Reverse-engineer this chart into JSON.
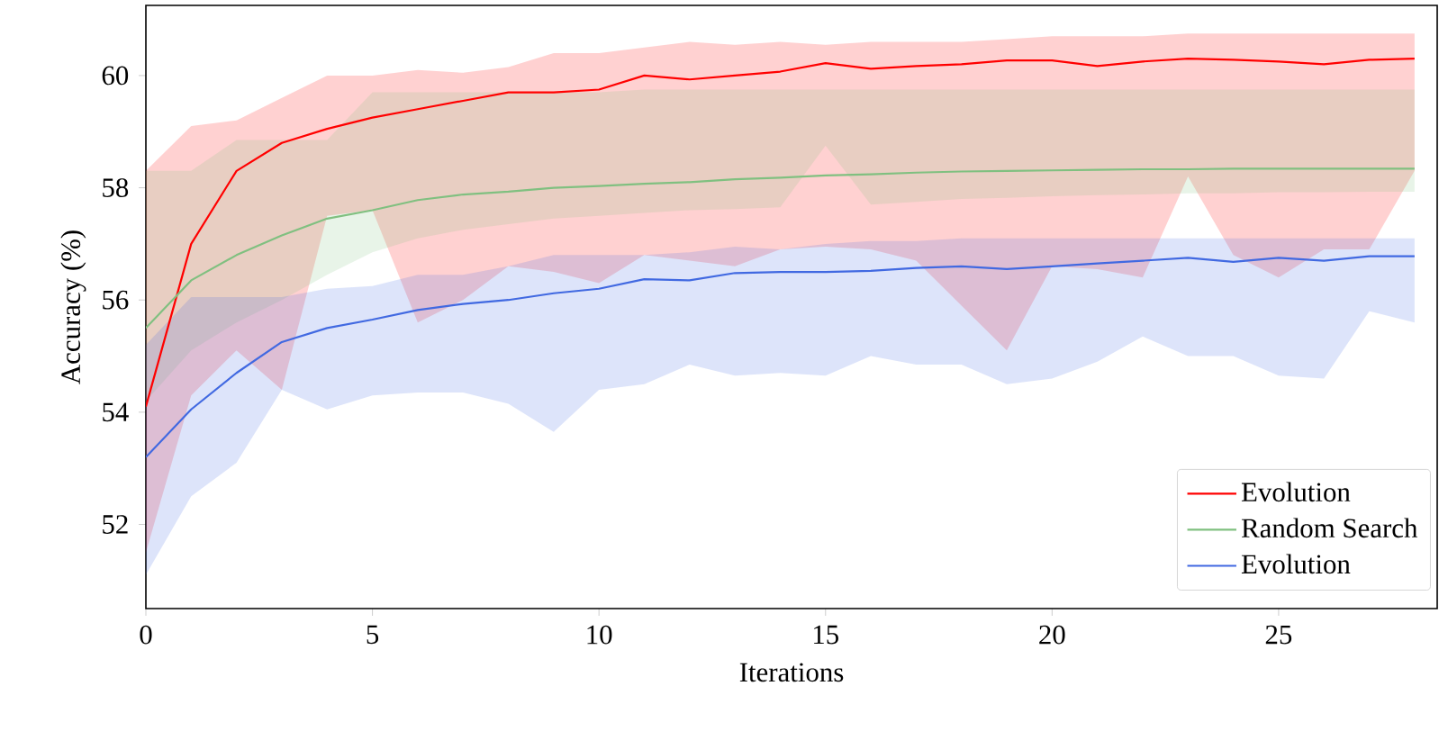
{
  "chart_data": {
    "type": "line",
    "xlabel": "Iterations",
    "ylabel": "Accuracy (%)",
    "xlim": [
      0,
      28.5
    ],
    "ylim": [
      50.5,
      61.25
    ],
    "xticks": [
      0,
      5,
      10,
      15,
      20,
      25
    ],
    "yticks": [
      52,
      54,
      56,
      58,
      60
    ],
    "legend": "bottom right",
    "x": [
      0,
      1,
      2,
      3,
      4,
      5,
      6,
      7,
      8,
      9,
      10,
      11,
      12,
      13,
      14,
      15,
      16,
      17,
      18,
      19,
      20,
      21,
      22,
      23,
      24,
      25,
      26,
      27,
      28
    ],
    "series": [
      {
        "name": "Evolution",
        "color": "#ff0000",
        "values": [
          54.1,
          57.0,
          58.3,
          58.8,
          59.05,
          59.25,
          59.4,
          59.55,
          59.7,
          59.7,
          59.75,
          60.0,
          59.93,
          60.0,
          60.07,
          60.22,
          60.12,
          60.17,
          60.2,
          60.27,
          60.27,
          60.17,
          60.25,
          60.3,
          60.28,
          60.25,
          60.2,
          60.28,
          60.3
        ],
        "upper": [
          58.3,
          59.1,
          59.2,
          59.6,
          60.0,
          60.0,
          60.1,
          60.05,
          60.15,
          60.4,
          60.4,
          60.5,
          60.6,
          60.55,
          60.6,
          60.55,
          60.6,
          60.6,
          60.6,
          60.65,
          60.7,
          60.7,
          60.7,
          60.75,
          60.75,
          60.75,
          60.75,
          60.75,
          60.75
        ],
        "lower": [
          51.5,
          54.3,
          55.1,
          54.4,
          57.5,
          57.6,
          55.6,
          56.0,
          56.6,
          56.5,
          56.3,
          56.8,
          56.7,
          56.6,
          56.9,
          56.95,
          56.9,
          56.7,
          55.9,
          55.1,
          56.6,
          56.55,
          56.4,
          58.2,
          56.8,
          56.4,
          56.9,
          56.9,
          58.3
        ]
      },
      {
        "name": "Random Search",
        "color": "#80c080",
        "values": [
          55.5,
          56.35,
          56.8,
          57.15,
          57.45,
          57.6,
          57.78,
          57.88,
          57.93,
          58.0,
          58.03,
          58.07,
          58.1,
          58.15,
          58.18,
          58.22,
          58.24,
          58.27,
          58.29,
          58.3,
          58.31,
          58.32,
          58.33,
          58.33,
          58.34,
          58.34,
          58.34,
          58.34,
          58.34
        ],
        "upper": [
          58.3,
          58.3,
          58.85,
          58.85,
          58.85,
          59.7,
          59.7,
          59.7,
          59.7,
          59.7,
          59.7,
          59.75,
          59.75,
          59.75,
          59.75,
          59.75,
          59.75,
          59.75,
          59.75,
          59.75,
          59.75,
          59.75,
          59.75,
          59.75,
          59.75,
          59.75,
          59.75,
          59.75,
          59.75
        ],
        "lower": [
          54.2,
          55.1,
          55.6,
          56.0,
          56.45,
          56.85,
          57.1,
          57.25,
          57.35,
          57.45,
          57.5,
          57.55,
          57.6,
          57.62,
          57.65,
          58.75,
          57.7,
          57.75,
          57.8,
          57.82,
          57.85,
          57.87,
          57.88,
          57.9,
          57.9,
          57.92,
          57.92,
          57.93,
          57.93
        ]
      },
      {
        "name": "Evolution",
        "color": "#4169e1",
        "values": [
          53.2,
          54.05,
          54.7,
          55.25,
          55.5,
          55.65,
          55.82,
          55.93,
          56.0,
          56.12,
          56.2,
          56.37,
          56.35,
          56.48,
          56.5,
          56.5,
          56.52,
          56.57,
          56.6,
          56.55,
          56.6,
          56.65,
          56.7,
          56.75,
          56.68,
          56.75,
          56.7,
          56.78,
          56.78
        ],
        "upper": [
          55.2,
          56.05,
          56.05,
          56.05,
          56.2,
          56.25,
          56.45,
          56.45,
          56.6,
          56.8,
          56.8,
          56.8,
          56.85,
          56.95,
          56.9,
          57.0,
          57.05,
          57.05,
          57.1,
          57.1,
          57.1,
          57.1,
          57.1,
          57.1,
          57.1,
          57.1,
          57.1,
          57.1,
          57.1
        ],
        "lower": [
          51.1,
          52.5,
          53.1,
          54.4,
          54.05,
          54.3,
          54.35,
          54.35,
          54.15,
          53.65,
          54.4,
          54.5,
          54.85,
          54.65,
          54.7,
          54.65,
          55.0,
          54.85,
          54.85,
          54.5,
          54.6,
          54.9,
          55.35,
          55.0,
          55.0,
          54.65,
          54.6,
          55.8,
          55.6
        ]
      }
    ]
  }
}
